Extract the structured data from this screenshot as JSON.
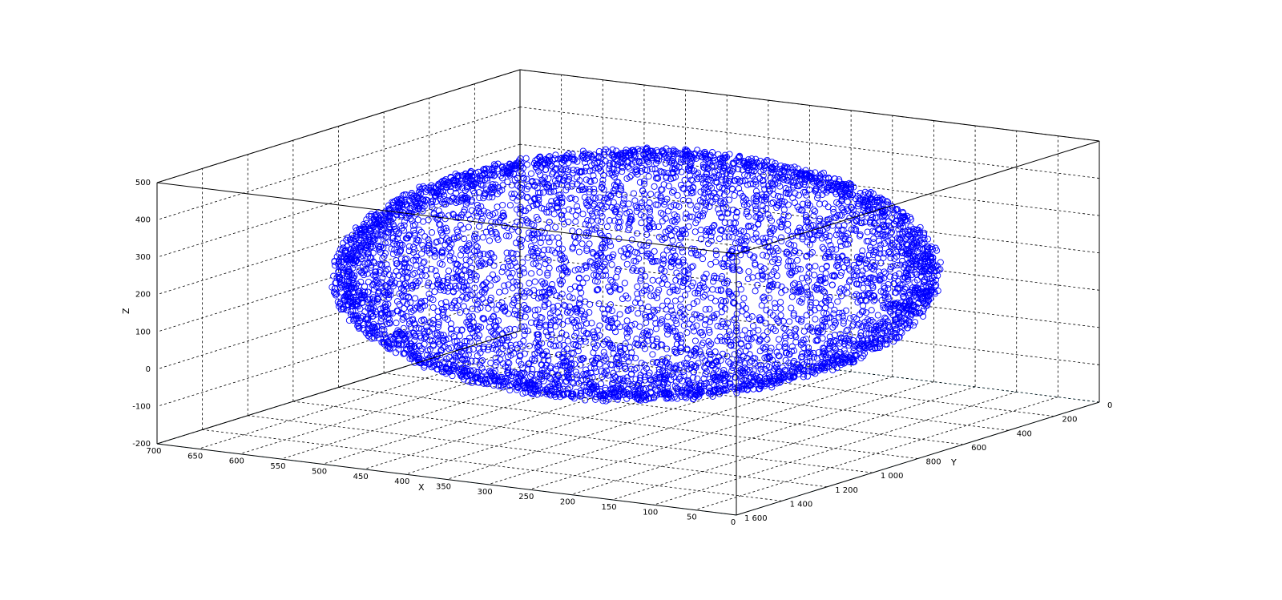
{
  "chart_data": {
    "type": "scatter",
    "title": "",
    "xlabel": "X",
    "ylabel": "Y",
    "zlabel": "Z",
    "xlim": [
      0,
      700
    ],
    "ylim": [
      0,
      1600
    ],
    "zlim": [
      -200,
      500
    ],
    "x_ticks": [
      "700",
      "650",
      "600",
      "550",
      "500",
      "450",
      "400",
      "350",
      "300",
      "250",
      "200",
      "150",
      "100",
      "50",
      "0"
    ],
    "y_ticks": [
      "0",
      "200",
      "400",
      "600",
      "800",
      "1 000",
      "1 200",
      "1 400",
      "1 600"
    ],
    "z_ticks": [
      "-200",
      "-100",
      "0",
      "100",
      "200",
      "300",
      "400",
      "500"
    ],
    "grid": true,
    "marker": "circle",
    "marker_color": "#0000ff",
    "description_of_points": "ellipsoid point cloud",
    "ellipsoid": {
      "center": {
        "x": 340,
        "y": 800,
        "z": 200
      },
      "semi_axes": {
        "x": 300,
        "y": 720,
        "z": 290
      },
      "approx_point_count": 6000
    }
  }
}
